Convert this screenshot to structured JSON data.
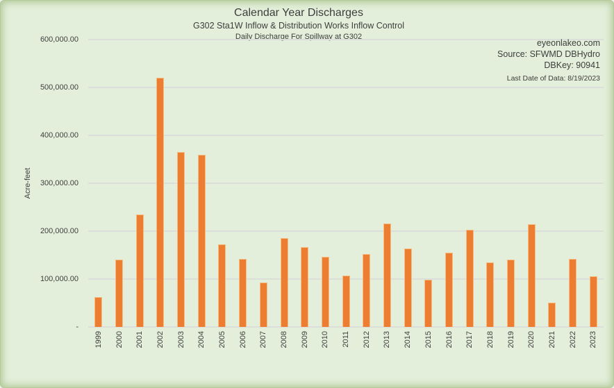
{
  "header": {
    "title": "Calendar Year Discharges",
    "subtitle1": "G302 Sta1W Inflow & Distribution Works Inflow Control",
    "subtitle2": "Daily Discharge For Spillway at G302"
  },
  "watermark": {
    "site": "eyeonlakeo.com",
    "source": "Source: SFWMD DBHydro",
    "dbkey": "DBKey: 90941",
    "last_date": "Last Date of Data: 8/19/2023"
  },
  "chart_data": {
    "type": "bar",
    "title": "Calendar Year Discharges",
    "subtitle": "G302 Sta1W Inflow & Distribution Works Inflow Control — Daily Discharge For Spillway at G302",
    "xlabel": "",
    "ylabel": "Acre-feet",
    "ylim": [
      0,
      600000
    ],
    "grid": true,
    "legend": false,
    "categories": [
      "1999",
      "2000",
      "2001",
      "2002",
      "2003",
      "2004",
      "2005",
      "2006",
      "2007",
      "2008",
      "2009",
      "2010",
      "2011",
      "2012",
      "2013",
      "2014",
      "2015",
      "2016",
      "2017",
      "2018",
      "2019",
      "2020",
      "2021",
      "2022",
      "2023"
    ],
    "values": [
      62000,
      140000,
      235000,
      521000,
      365000,
      359000,
      172000,
      142000,
      93000,
      185000,
      166000,
      146000,
      107000,
      152000,
      216000,
      164000,
      98000,
      155000,
      203000,
      135000,
      141000,
      214000,
      51000,
      142000,
      106000
    ],
    "y_ticks": [
      {
        "value": 600000,
        "label": "600,000.00"
      },
      {
        "value": 500000,
        "label": "500,000.00"
      },
      {
        "value": 400000,
        "label": "400,000.00"
      },
      {
        "value": 300000,
        "label": "300,000.00"
      },
      {
        "value": 200000,
        "label": "200,000.00"
      },
      {
        "value": 100000,
        "label": "100,000.00"
      },
      {
        "value": 0,
        "label": "-"
      }
    ],
    "colors": {
      "bar_fill": "#ED7D31",
      "bar_border": "#F3BE83",
      "background": "#E3EFDA",
      "gridline": "#DBDED9",
      "text": "#3D3D3D"
    }
  }
}
